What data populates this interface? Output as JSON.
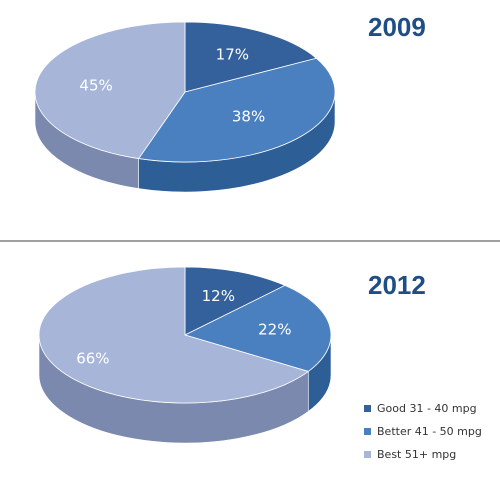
{
  "colors": {
    "good": "#34619c",
    "better": "#4a80c0",
    "best": "#a6b5d8",
    "good_side": "#1f3f6a",
    "better_side": "#2d5e96",
    "best_side": "#7a89ad"
  },
  "legend": [
    {
      "label": "Good 31 - 40 mpg",
      "color_key": "good"
    },
    {
      "label": "Better 41 - 50 mpg",
      "color_key": "better"
    },
    {
      "label": "Best 51+ mpg",
      "color_key": "best"
    }
  ],
  "chart_data": [
    {
      "type": "pie",
      "title": "2009",
      "categories": [
        "Good 31 - 40 mpg",
        "Better 41 - 50 mpg",
        "Best 51+ mpg"
      ],
      "values": [
        17,
        38,
        45
      ],
      "labels": [
        "17%",
        "38%",
        "45%"
      ],
      "legend": "none"
    },
    {
      "type": "pie",
      "title": "2012",
      "categories": [
        "Good 31 - 40 mpg",
        "Better 41 - 50 mpg",
        "Best 51+ mpg"
      ],
      "values": [
        12,
        22,
        66
      ],
      "labels": [
        "12%",
        "22%",
        "66%"
      ],
      "legend": "bottom-right"
    }
  ]
}
